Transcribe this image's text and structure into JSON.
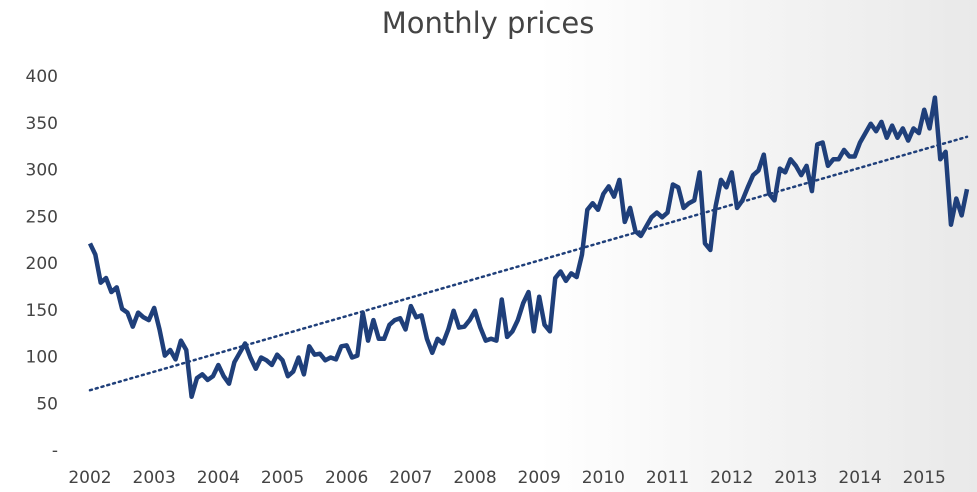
{
  "chart_data": {
    "type": "line",
    "title": "Monthly prices",
    "categories": [
      "2002",
      null,
      null,
      null,
      null,
      null,
      null,
      null,
      null,
      null,
      null,
      null,
      "2003",
      null,
      null,
      null,
      null,
      null,
      null,
      null,
      null,
      null,
      null,
      null,
      "2004",
      null,
      null,
      null,
      null,
      null,
      null,
      null,
      null,
      null,
      null,
      null,
      "2005",
      null,
      null,
      null,
      null,
      null,
      null,
      null,
      null,
      null,
      null,
      null,
      "2006",
      null,
      null,
      null,
      null,
      null,
      null,
      null,
      null,
      null,
      null,
      null,
      "2007",
      null,
      null,
      null,
      null,
      null,
      null,
      null,
      null,
      null,
      null,
      null,
      "2008",
      null,
      null,
      null,
      null,
      null,
      null,
      null,
      null,
      null,
      null,
      null,
      "2009",
      null,
      null,
      null,
      null,
      null,
      null,
      null,
      null,
      null,
      null,
      null,
      "2010",
      null,
      null,
      null,
      null,
      null,
      null,
      null,
      null,
      null,
      null,
      null,
      "2011",
      null,
      null,
      null,
      null,
      null,
      null,
      null,
      null,
      null,
      null,
      null,
      "2012",
      null,
      null,
      null,
      null,
      null,
      null,
      null,
      null,
      null,
      null,
      null,
      "2013",
      null,
      null,
      null,
      null,
      null,
      null,
      null,
      null,
      null,
      null,
      null,
      "2014",
      null,
      null,
      null,
      null,
      null,
      null,
      null,
      null,
      null,
      null,
      null,
      "2015",
      null,
      null,
      null,
      null,
      null,
      null,
      null,
      null
    ],
    "values": [
      222,
      210,
      180,
      185,
      170,
      175,
      152,
      148,
      133,
      148,
      143,
      140,
      153,
      130,
      102,
      108,
      98,
      118,
      108,
      58,
      78,
      82,
      76,
      80,
      92,
      80,
      72,
      95,
      105,
      115,
      100,
      88,
      100,
      97,
      92,
      103,
      97,
      80,
      85,
      100,
      82,
      112,
      103,
      104,
      97,
      100,
      98,
      112,
      113,
      100,
      102,
      148,
      118,
      140,
      120,
      120,
      135,
      140,
      142,
      130,
      155,
      143,
      145,
      120,
      105,
      120,
      115,
      130,
      150,
      132,
      133,
      140,
      150,
      132,
      118,
      120,
      118,
      162,
      122,
      128,
      140,
      158,
      170,
      128,
      165,
      135,
      128,
      185,
      192,
      182,
      190,
      186,
      210,
      258,
      265,
      258,
      275,
      283,
      272,
      290,
      245,
      260,
      235,
      230,
      240,
      250,
      255,
      250,
      255,
      285,
      282,
      260,
      265,
      268,
      298,
      222,
      215,
      262,
      290,
      282,
      298,
      260,
      268,
      282,
      295,
      300,
      317,
      275,
      268,
      302,
      298,
      312,
      305,
      295,
      305,
      278,
      328,
      330,
      305,
      312,
      312,
      322,
      315,
      315,
      330,
      340,
      350,
      342,
      352,
      335,
      348,
      335,
      345,
      332,
      345,
      340,
      365,
      345,
      378,
      312,
      320,
      242,
      270,
      252,
      280
    ],
    "color": "#1f3f7a",
    "trendline": [
      65,
      336
    ],
    "ylim": [
      0,
      400
    ],
    "yticks": [
      {
        "value": 0,
        "label": "-"
      },
      50,
      100,
      150,
      200,
      250,
      300,
      350,
      400
    ]
  }
}
